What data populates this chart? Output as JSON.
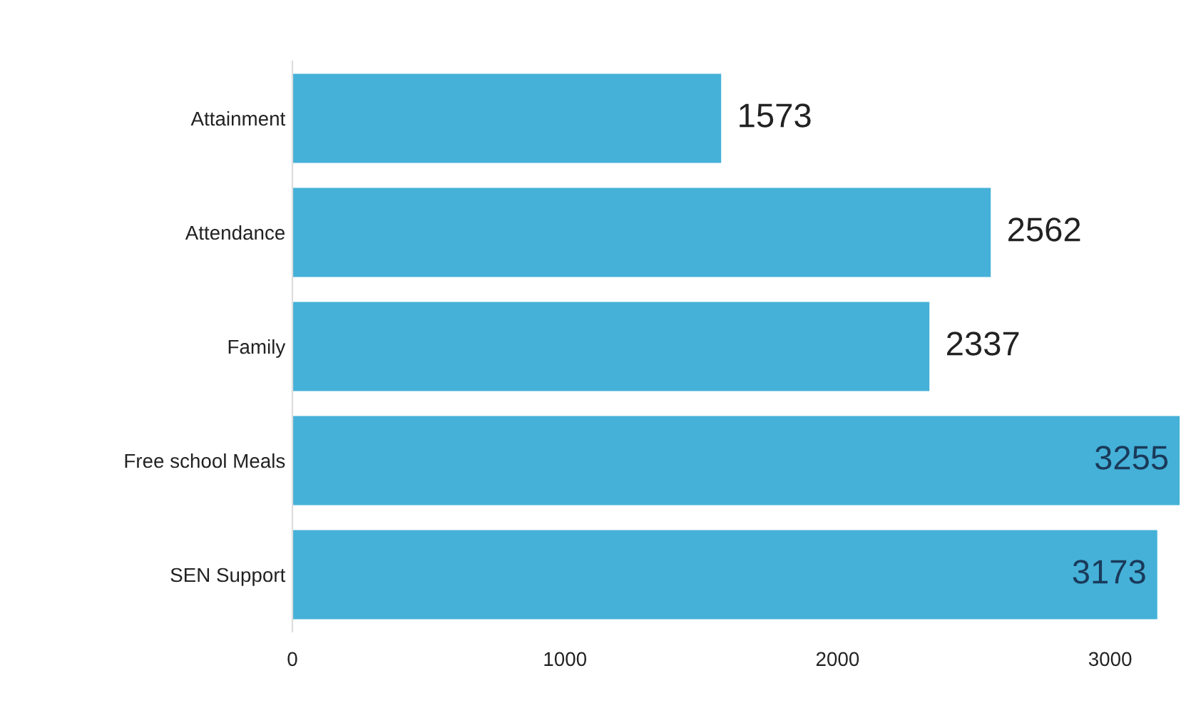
{
  "chart_data": {
    "type": "bar",
    "orientation": "horizontal",
    "categories": [
      "Attainment",
      "Attendance",
      "Family",
      "Free school Meals",
      "SEN Support"
    ],
    "values": [
      1573,
      2562,
      2337,
      3255,
      3173
    ],
    "color": "#45b1d8",
    "xlim": [
      0,
      3260
    ],
    "xticks": [
      0,
      1000,
      2000,
      3000
    ],
    "data_labels": true,
    "grid": false,
    "legend": false
  }
}
